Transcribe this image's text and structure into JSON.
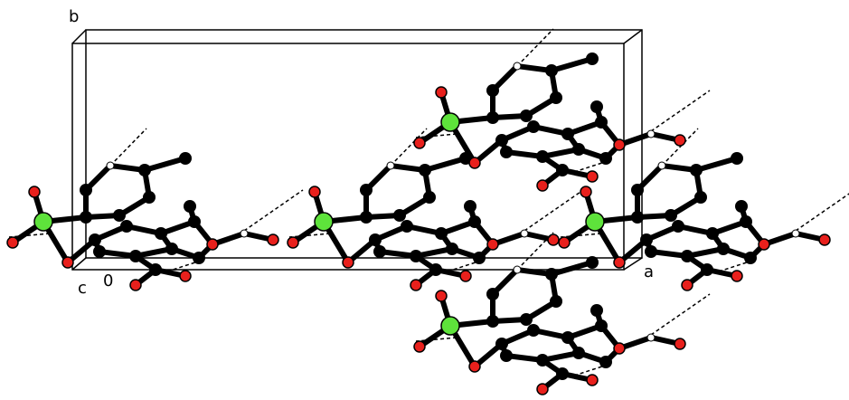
{
  "axis_labels": {
    "b": "b",
    "c": "c",
    "origin": "0",
    "a": "a"
  }
}
